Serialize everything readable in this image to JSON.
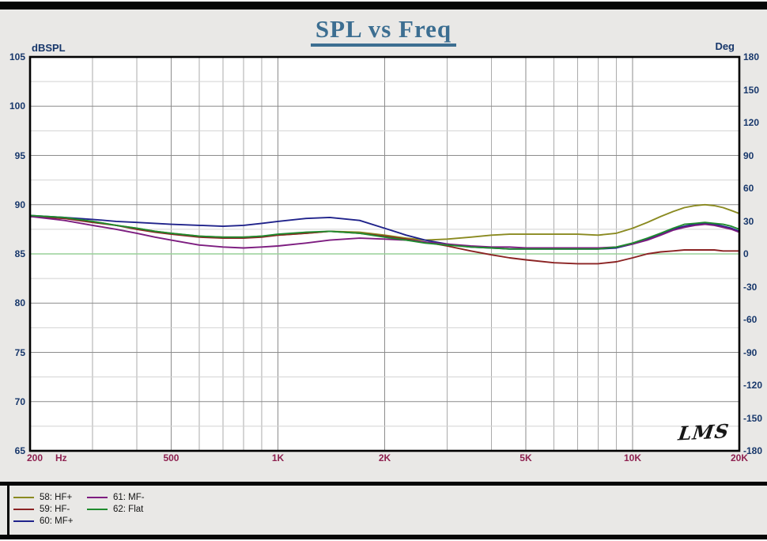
{
  "header": {
    "title": "SPL vs Freq"
  },
  "chart_data": {
    "type": "line",
    "title": "SPL vs Freq",
    "x_axis": {
      "scale": "log",
      "min": 200,
      "max": 20000,
      "unit_label": "Hz",
      "ticks": [
        {
          "f": 200,
          "label": "200"
        },
        {
          "f": 500,
          "label": "500"
        },
        {
          "f": 1000,
          "label": "1K"
        },
        {
          "f": 2000,
          "label": "2K"
        },
        {
          "f": 5000,
          "label": "5K"
        },
        {
          "f": 10000,
          "label": "10K"
        },
        {
          "f": 20000,
          "label": "20K"
        }
      ]
    },
    "y_left": {
      "label": "dBSPL",
      "min": 65,
      "max": 105,
      "tick_step": 5,
      "ticks": [
        105,
        100,
        95,
        90,
        85,
        80,
        75,
        70,
        65
      ]
    },
    "y_right": {
      "label": "Deg",
      "min": -180,
      "max": 180,
      "tick_step": 30,
      "ticks": [
        180,
        150,
        120,
        90,
        60,
        30,
        0,
        -30,
        -60,
        -90,
        -120,
        -150,
        -180
      ]
    },
    "grid": true,
    "legend_position": "bottom-left",
    "logo": "LMS",
    "zero_line": {
      "db": 85,
      "deg": 0,
      "color": "#99d199"
    },
    "frequencies": [
      200,
      250,
      300,
      350,
      400,
      450,
      500,
      600,
      700,
      800,
      900,
      1000,
      1200,
      1400,
      1700,
      2000,
      2300,
      2600,
      3000,
      3500,
      4000,
      4500,
      5000,
      6000,
      7000,
      8000,
      9000,
      10000,
      11000,
      12000,
      13000,
      14000,
      15000,
      16000,
      17000,
      18000,
      19000,
      20000
    ],
    "series": [
      {
        "id": "58",
        "name": "58: HF+",
        "color": "#8a8a20",
        "values": [
          88.8,
          88.6,
          88.3,
          87.9,
          87.6,
          87.3,
          87.1,
          86.8,
          86.7,
          86.7,
          86.8,
          86.9,
          87.1,
          87.3,
          87.2,
          86.9,
          86.6,
          86.4,
          86.5,
          86.7,
          86.9,
          87.0,
          87.0,
          87.0,
          87.0,
          86.9,
          87.1,
          87.6,
          88.2,
          88.8,
          89.3,
          89.7,
          89.9,
          90.0,
          89.9,
          89.7,
          89.4,
          89.1
        ]
      },
      {
        "id": "59",
        "name": "59: HF-",
        "color": "#8b2323",
        "values": [
          88.8,
          88.6,
          88.2,
          87.9,
          87.5,
          87.2,
          87.0,
          86.7,
          86.6,
          86.6,
          86.7,
          86.9,
          87.1,
          87.3,
          87.1,
          86.8,
          86.5,
          86.2,
          85.8,
          85.3,
          84.9,
          84.6,
          84.4,
          84.1,
          84.0,
          84.0,
          84.2,
          84.6,
          85.0,
          85.2,
          85.3,
          85.4,
          85.4,
          85.4,
          85.4,
          85.3,
          85.3,
          85.3
        ]
      },
      {
        "id": "60",
        "name": "60: MF+",
        "color": "#20238b",
        "values": [
          88.9,
          88.7,
          88.5,
          88.3,
          88.2,
          88.1,
          88.0,
          87.9,
          87.8,
          87.9,
          88.1,
          88.3,
          88.6,
          88.7,
          88.4,
          87.6,
          86.9,
          86.4,
          86.0,
          85.7,
          85.6,
          85.5,
          85.5,
          85.5,
          85.5,
          85.5,
          85.6,
          86.0,
          86.5,
          87.0,
          87.5,
          87.8,
          88.0,
          88.1,
          88.0,
          87.8,
          87.6,
          87.3
        ]
      },
      {
        "id": "61",
        "name": "61: MF-",
        "color": "#7d1d80",
        "values": [
          88.8,
          88.4,
          87.9,
          87.5,
          87.1,
          86.7,
          86.4,
          85.9,
          85.7,
          85.6,
          85.7,
          85.8,
          86.1,
          86.4,
          86.6,
          86.5,
          86.4,
          86.2,
          86.0,
          85.8,
          85.7,
          85.7,
          85.6,
          85.6,
          85.6,
          85.6,
          85.7,
          86.0,
          86.4,
          86.9,
          87.4,
          87.7,
          87.9,
          88.0,
          87.9,
          87.7,
          87.5,
          87.2
        ]
      },
      {
        "id": "62",
        "name": "62: Flat",
        "color": "#1f8b2e",
        "values": [
          88.9,
          88.7,
          88.3,
          87.9,
          87.6,
          87.3,
          87.1,
          86.8,
          86.7,
          86.7,
          86.8,
          87.0,
          87.2,
          87.3,
          87.1,
          86.7,
          86.4,
          86.1,
          85.9,
          85.7,
          85.6,
          85.5,
          85.5,
          85.5,
          85.5,
          85.5,
          85.7,
          86.1,
          86.6,
          87.1,
          87.6,
          88.0,
          88.1,
          88.2,
          88.1,
          88.0,
          87.8,
          87.5
        ]
      }
    ]
  },
  "legend": {
    "items": [
      {
        "label": "58: HF+",
        "color": "#8a8a20"
      },
      {
        "label": "59: HF-",
        "color": "#8b2323"
      },
      {
        "label": "60: MF+",
        "color": "#20238b"
      },
      {
        "label": "61: MF-",
        "color": "#7d1d80"
      },
      {
        "label": "62: Flat",
        "color": "#1f8b2e"
      }
    ]
  },
  "colors": {
    "background": "#e9e8e6",
    "plot_background": "#ffffff",
    "title": "#3c6e91",
    "y_axis_text": "#17376b",
    "x_axis_text": "#8e2150",
    "grid_major": "#8c8c8c",
    "grid_minor_h": "#d2d2d2",
    "grid_minor_v": "#ababab",
    "frame": "#000000"
  }
}
